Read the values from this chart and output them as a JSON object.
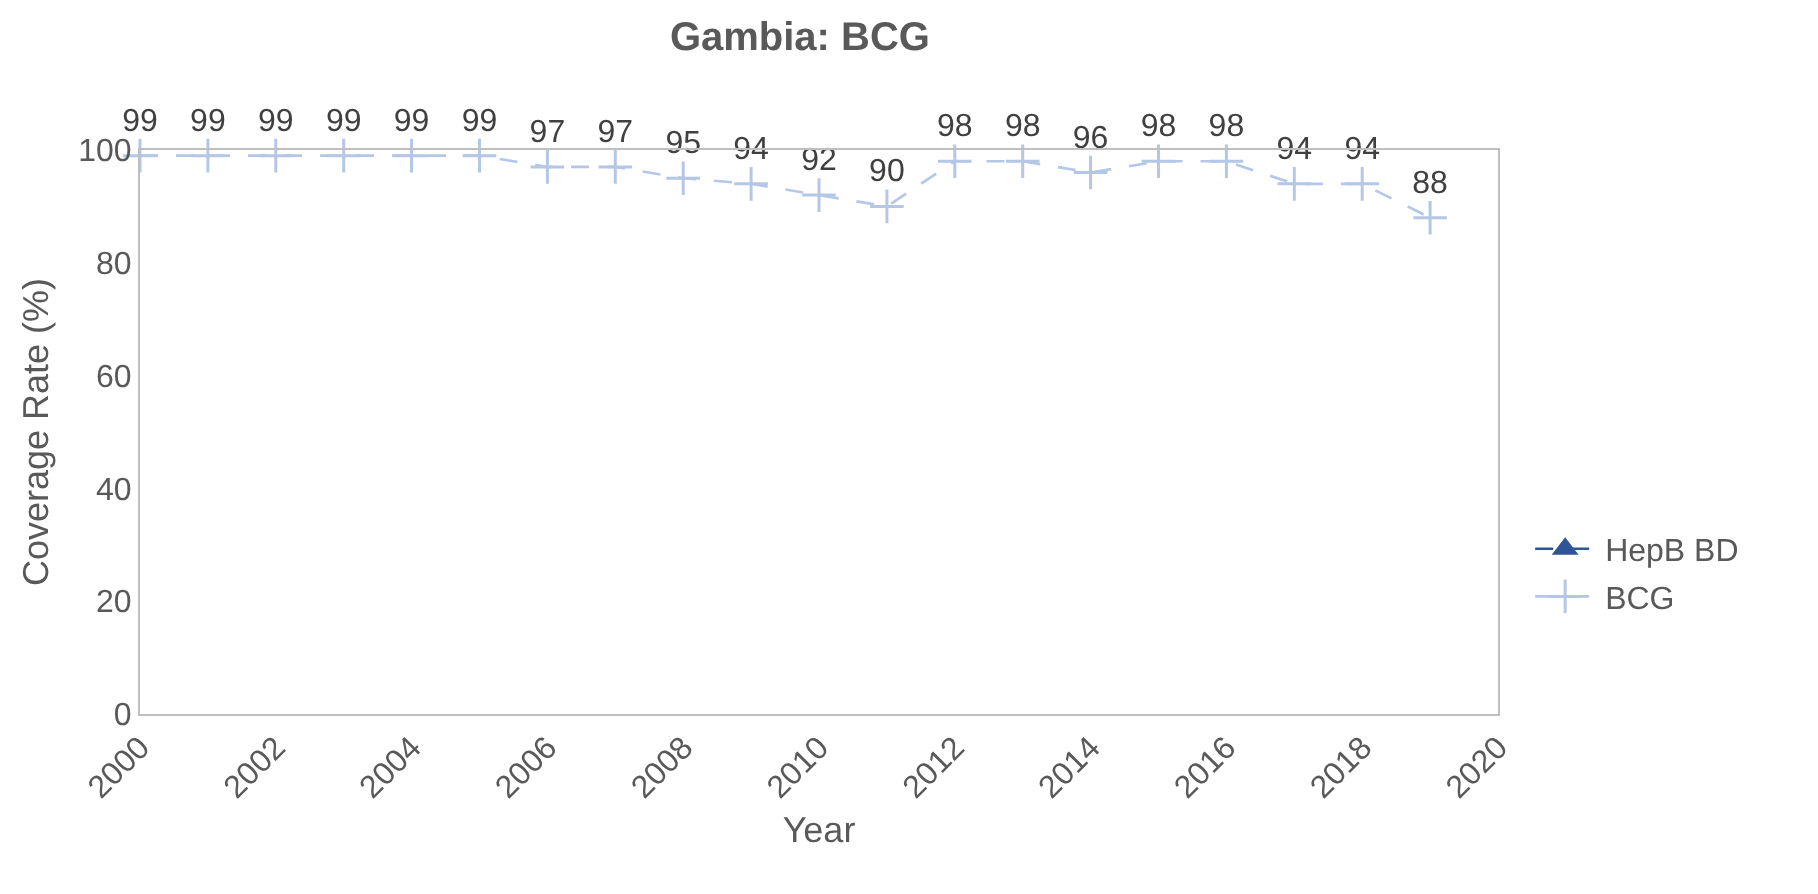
{
  "chart_data": {
    "type": "line",
    "title": "Gambia: BCG",
    "xlabel": "Year",
    "ylabel": "Coverage Rate (%)",
    "x": [
      2000,
      2001,
      2002,
      2003,
      2004,
      2005,
      2006,
      2007,
      2008,
      2009,
      2010,
      2011,
      2012,
      2013,
      2014,
      2015,
      2016,
      2017,
      2018,
      2019
    ],
    "series": [
      {
        "name": "HepB BD",
        "color": "#2f5597",
        "marker": "triangle",
        "line_style": "dashed",
        "values": [
          null,
          null,
          null,
          null,
          null,
          null,
          null,
          null,
          null,
          null,
          null,
          null,
          null,
          null,
          null,
          null,
          null,
          null,
          null,
          null
        ]
      },
      {
        "name": "BCG",
        "color": "#b4c7e7",
        "marker": "cross",
        "line_style": "dashed",
        "values": [
          99,
          99,
          99,
          99,
          99,
          99,
          97,
          97,
          95,
          94,
          92,
          90,
          98,
          98,
          96,
          98,
          98,
          94,
          94,
          88
        ]
      }
    ],
    "xlim": [
      2000,
      2020
    ],
    "xticks": [
      2000,
      2002,
      2004,
      2006,
      2008,
      2010,
      2012,
      2014,
      2016,
      2018,
      2020
    ],
    "ylim": [
      0,
      100
    ],
    "yticks": [
      0,
      20,
      40,
      60,
      80,
      100
    ],
    "grid": false,
    "legend": "right",
    "data_labels": true
  }
}
